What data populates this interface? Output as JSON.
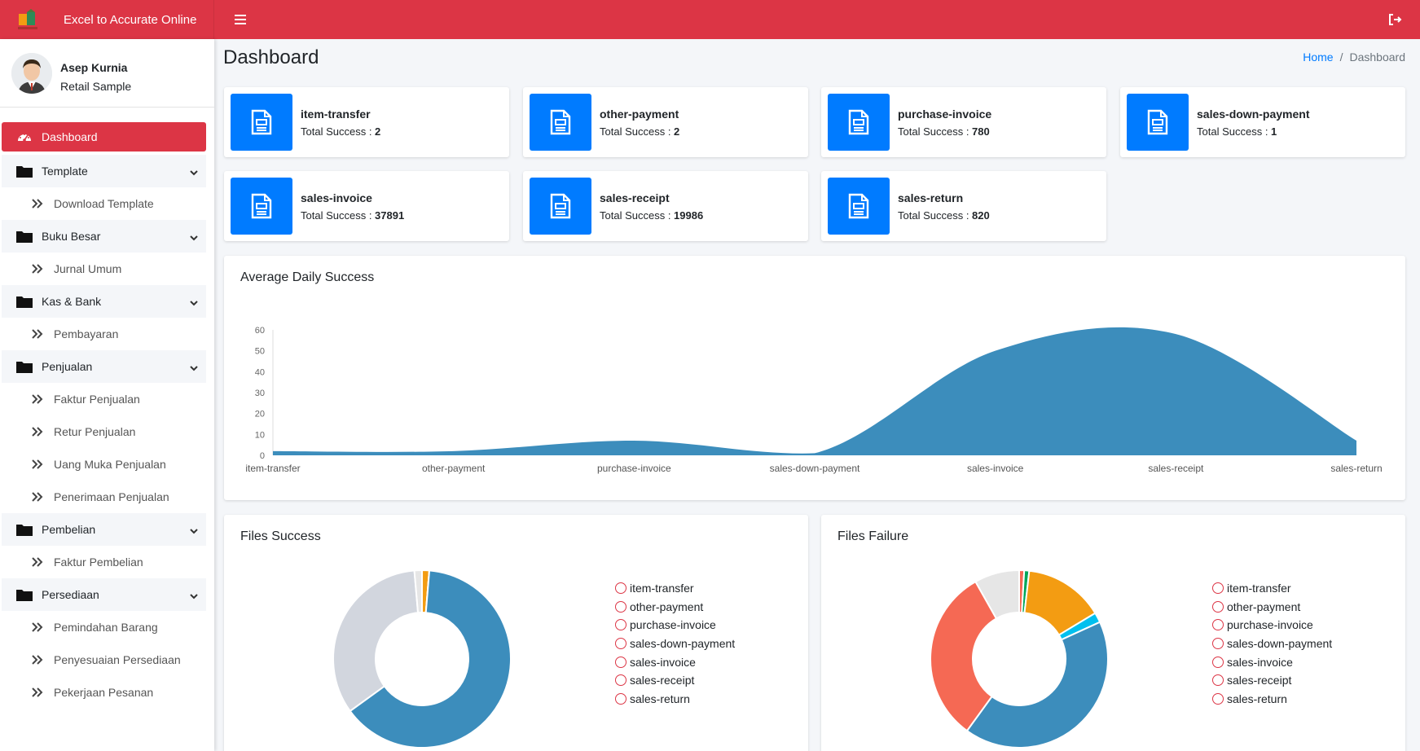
{
  "app": {
    "title": "Excel to Accurate Online"
  },
  "user": {
    "name": "Asep Kurnia",
    "company": "Retail Sample"
  },
  "sidebar": {
    "dashboard": "Dashboard",
    "groups": [
      {
        "label": "Template",
        "items": [
          "Download Template"
        ]
      },
      {
        "label": "Buku Besar",
        "items": [
          "Jurnal Umum"
        ]
      },
      {
        "label": "Kas & Bank",
        "items": [
          "Pembayaran"
        ]
      },
      {
        "label": "Penjualan",
        "items": [
          "Faktur Penjualan",
          "Retur Penjualan",
          "Uang Muka Penjualan",
          "Penerimaan Penjualan"
        ]
      },
      {
        "label": "Pembelian",
        "items": [
          "Faktur Pembelian"
        ]
      },
      {
        "label": "Persediaan",
        "items": [
          "Pemindahan Barang",
          "Penyesuaian Persediaan",
          "Pekerjaan Pesanan"
        ]
      }
    ]
  },
  "page": {
    "title": "Dashboard"
  },
  "breadcrumb": {
    "home": "Home",
    "sep": "/",
    "current": "Dashboard"
  },
  "count_label": "Total Success : ",
  "stats": [
    {
      "name": "item-transfer",
      "total": "2"
    },
    {
      "name": "other-payment",
      "total": "2"
    },
    {
      "name": "purchase-invoice",
      "total": "780"
    },
    {
      "name": "sales-down-payment",
      "total": "1"
    },
    {
      "name": "sales-invoice",
      "total": "37891"
    },
    {
      "name": "sales-receipt",
      "total": "19986"
    },
    {
      "name": "sales-return",
      "total": "820"
    }
  ],
  "colors": {
    "accent": "#dc3545",
    "primary": "#007bff",
    "area": "#3c8dbc"
  },
  "chart_data": [
    {
      "type": "area",
      "title": "Average Daily Success",
      "categories": [
        "item-transfer",
        "other-payment",
        "purchase-invoice",
        "sales-down-payment",
        "sales-invoice",
        "sales-receipt",
        "sales-return"
      ],
      "values": [
        2,
        2,
        7,
        1,
        50,
        58,
        7
      ],
      "ylim": [
        0,
        60
      ],
      "yticks": [
        0,
        10,
        20,
        30,
        40,
        50,
        60
      ]
    },
    {
      "type": "pie",
      "title": "Files Success",
      "labels": [
        "item-transfer",
        "other-payment",
        "purchase-invoice",
        "sales-down-payment",
        "sales-invoice",
        "sales-receipt",
        "sales-return"
      ],
      "values": [
        2,
        2,
        780,
        1,
        37891,
        19986,
        820
      ],
      "colors": [
        "#f56954",
        "#00a65a",
        "#f39c12",
        "#00c0ef",
        "#3c8dbc",
        "#d2d6de",
        "#e6e6e6"
      ],
      "legend": "right"
    },
    {
      "type": "pie",
      "title": "Files Failure",
      "labels": [
        "item-transfer",
        "other-payment",
        "purchase-invoice",
        "sales-down-payment",
        "sales-invoice",
        "sales-receipt",
        "sales-return"
      ],
      "values": [
        1,
        1,
        16,
        2,
        46,
        35,
        9
      ],
      "colors": [
        "#f56954",
        "#00a65a",
        "#f39c12",
        "#00c0ef",
        "#3c8dbc",
        "#f56954",
        "#e6e6e6"
      ],
      "legend": "right"
    }
  ]
}
